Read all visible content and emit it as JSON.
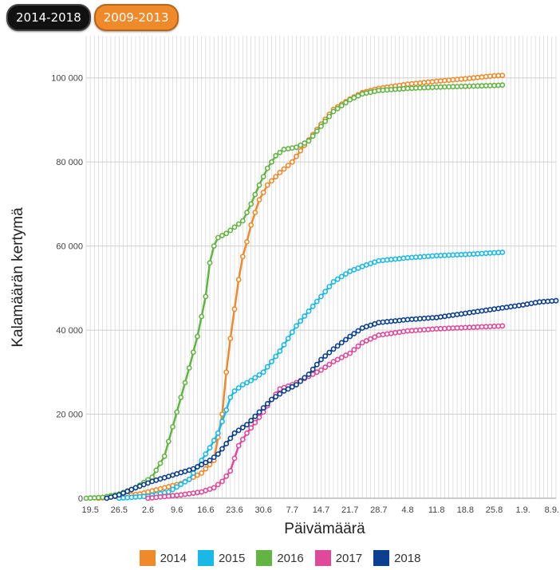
{
  "tabs": [
    {
      "label": "2014-2018",
      "active": true
    },
    {
      "label": "2009-2013",
      "active": false
    }
  ],
  "chart_data": {
    "type": "line",
    "title": "",
    "xlabel": "Päivämäärä",
    "ylabel": "Kalamäärän kertymä",
    "ylim": [
      0,
      110000
    ],
    "y_ticks": [
      0,
      20000,
      40000,
      60000,
      80000,
      100000
    ],
    "y_tick_labels": [
      "0",
      "20 000",
      "40 000",
      "60 000",
      "80 000",
      "100 000"
    ],
    "x_tick_labels": [
      "19.5",
      "26.5",
      "2.6",
      "9.6",
      "16.6",
      "23.6",
      "30.6",
      "7.7",
      "14.7",
      "21.7",
      "28.7",
      "4.8",
      "11.8",
      "18.8",
      "25.8",
      "1.9.",
      "8.9."
    ],
    "x_day_range": [
      "18.5",
      "9.9."
    ],
    "grid": true,
    "legend_position": "bottom",
    "series": [
      {
        "name": "2014",
        "color": "#f0892a",
        "points": [
          [
            "21.5",
            0
          ],
          [
            "31.5",
            1000
          ],
          [
            "10.6",
            3500
          ],
          [
            "15.6",
            6000
          ],
          [
            "18.6",
            9000
          ],
          [
            "20.6",
            20000
          ],
          [
            "21.6",
            30000
          ],
          [
            "22.6",
            38000
          ],
          [
            "23.6",
            45000
          ],
          [
            "24.6",
            52000
          ],
          [
            "25.6",
            57500
          ],
          [
            "26.6",
            61000
          ],
          [
            "27.6",
            65000
          ],
          [
            "28.6",
            68000
          ],
          [
            "29.6",
            71000
          ],
          [
            "1.7",
            74500
          ],
          [
            "4.7",
            77500
          ],
          [
            "7.7",
            80000
          ],
          [
            "10.7",
            84000
          ],
          [
            "14.7",
            89000
          ],
          [
            "17.7",
            92500
          ],
          [
            "21.7",
            95000
          ],
          [
            "24.7",
            96500
          ],
          [
            "28.7",
            97500
          ],
          [
            "4.8",
            98500
          ],
          [
            "11.8",
            99200
          ],
          [
            "18.8",
            99800
          ],
          [
            "25.8",
            100500
          ],
          [
            "27.8",
            100600
          ]
        ]
      },
      {
        "name": "2015",
        "color": "#1ab8e6",
        "points": [
          [
            "26.5",
            0
          ],
          [
            "2.6",
            500
          ],
          [
            "7.6",
            1500
          ],
          [
            "12.6",
            4500
          ],
          [
            "15.6",
            9000
          ],
          [
            "17.6",
            12000
          ],
          [
            "19.6",
            15500
          ],
          [
            "21.6",
            21000
          ],
          [
            "22.6",
            24000
          ],
          [
            "23.6",
            25500
          ],
          [
            "25.6",
            27000
          ],
          [
            "27.6",
            28000
          ],
          [
            "30.6",
            30000
          ],
          [
            "2.7",
            32500
          ],
          [
            "4.7",
            35000
          ],
          [
            "6.7",
            38000
          ],
          [
            "8.7",
            41000
          ],
          [
            "11.7",
            44500
          ],
          [
            "14.7",
            48000
          ],
          [
            "17.7",
            51500
          ],
          [
            "21.7",
            54000
          ],
          [
            "25.7",
            55500
          ],
          [
            "28.7",
            56500
          ],
          [
            "4.8",
            57200
          ],
          [
            "11.8",
            57700
          ],
          [
            "18.8",
            58000
          ],
          [
            "25.8",
            58400
          ],
          [
            "27.8",
            58500
          ]
        ]
      },
      {
        "name": "2016",
        "color": "#62b543",
        "points": [
          [
            "18.5",
            0
          ],
          [
            "22.5",
            200
          ],
          [
            "26.5",
            1000
          ],
          [
            "30.5",
            2500
          ],
          [
            "3.6",
            5000
          ],
          [
            "6.6",
            10000
          ],
          [
            "8.6",
            17000
          ],
          [
            "10.6",
            24000
          ],
          [
            "12.6",
            31000
          ],
          [
            "14.6",
            38500
          ],
          [
            "16.6",
            48000
          ],
          [
            "17.6",
            56000
          ],
          [
            "18.6",
            60000
          ],
          [
            "19.6",
            62000
          ],
          [
            "21.6",
            63000
          ],
          [
            "23.6",
            64500
          ],
          [
            "25.6",
            66000
          ],
          [
            "27.6",
            70000
          ],
          [
            "29.6",
            74500
          ],
          [
            "1.7",
            78500
          ],
          [
            "3.7",
            81500
          ],
          [
            "5.7",
            83000
          ],
          [
            "8.7",
            83500
          ],
          [
            "11.7",
            85000
          ],
          [
            "14.7",
            88500
          ],
          [
            "17.7",
            92000
          ],
          [
            "21.7",
            94800
          ],
          [
            "24.7",
            96200
          ],
          [
            "28.7",
            97000
          ],
          [
            "4.8",
            97500
          ],
          [
            "11.8",
            97800
          ],
          [
            "18.8",
            98000
          ],
          [
            "25.8",
            98200
          ],
          [
            "27.8",
            98300
          ]
        ]
      },
      {
        "name": "2017",
        "color": "#e0489a",
        "points": [
          [
            "2.6",
            0
          ],
          [
            "10.6",
            800
          ],
          [
            "15.6",
            1500
          ],
          [
            "18.6",
            2500
          ],
          [
            "20.6",
            4000
          ],
          [
            "22.6",
            6500
          ],
          [
            "23.6",
            9500
          ],
          [
            "24.6",
            12500
          ],
          [
            "26.6",
            15500
          ],
          [
            "28.6",
            18000
          ],
          [
            "30.6",
            20500
          ],
          [
            "2.7",
            23500
          ],
          [
            "4.7",
            26000
          ],
          [
            "7.7",
            27000
          ],
          [
            "10.7",
            28500
          ],
          [
            "14.7",
            30500
          ],
          [
            "17.7",
            32500
          ],
          [
            "21.7",
            34500
          ],
          [
            "24.7",
            37000
          ],
          [
            "28.7",
            38800
          ],
          [
            "4.8",
            39800
          ],
          [
            "11.8",
            40300
          ],
          [
            "18.8",
            40600
          ],
          [
            "25.8",
            40900
          ],
          [
            "27.8",
            41000
          ]
        ]
      },
      {
        "name": "2018",
        "color": "#0b3f8f",
        "points": [
          [
            "23.5",
            0
          ],
          [
            "26.5",
            800
          ],
          [
            "30.5",
            2500
          ],
          [
            "3.6",
            4000
          ],
          [
            "8.6",
            5500
          ],
          [
            "13.6",
            7000
          ],
          [
            "17.6",
            9000
          ],
          [
            "19.6",
            10500
          ],
          [
            "21.6",
            13000
          ],
          [
            "23.6",
            15500
          ],
          [
            "26.6",
            17500
          ],
          [
            "28.6",
            19500
          ],
          [
            "30.6",
            21500
          ],
          [
            "2.7",
            23500
          ],
          [
            "5.7",
            25500
          ],
          [
            "8.7",
            27000
          ],
          [
            "11.7",
            29500
          ],
          [
            "14.7",
            33000
          ],
          [
            "17.7",
            35500
          ],
          [
            "21.7",
            38500
          ],
          [
            "24.7",
            40500
          ],
          [
            "28.7",
            41800
          ],
          [
            "4.8",
            42500
          ],
          [
            "11.8",
            43000
          ],
          [
            "18.8",
            44000
          ],
          [
            "25.8",
            45000
          ],
          [
            "1.9.",
            46000
          ],
          [
            "5.9.",
            46700
          ],
          [
            "9.9.",
            47000
          ]
        ]
      }
    ]
  }
}
